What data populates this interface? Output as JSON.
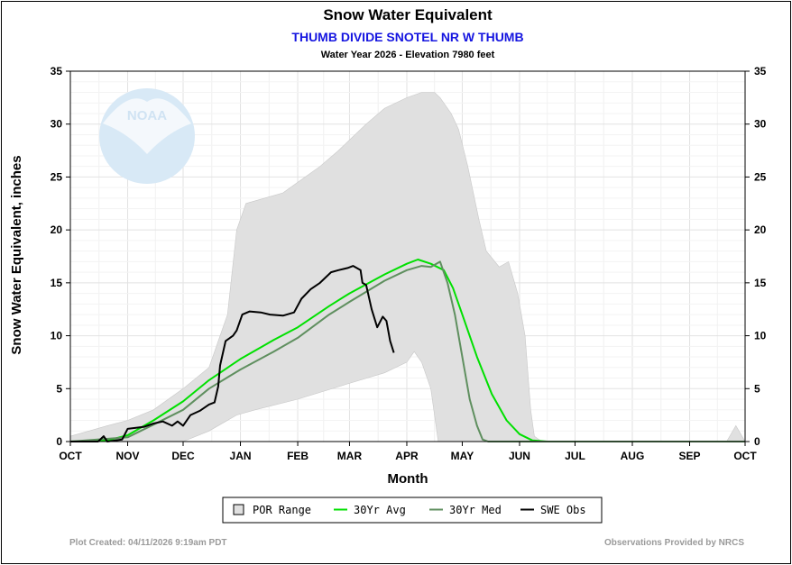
{
  "chart_data": {
    "type": "area",
    "title": "Snow Water Equivalent",
    "subtitle": "THUMB DIVIDE SNOTEL NR W THUMB",
    "meta": "Water Year 2026 -  Elevation 7980 feet",
    "xlabel": "Month",
    "ylabel": "Snow Water Equivalent, inches",
    "ylim": [
      0,
      35
    ],
    "y_ticks": [
      0,
      5,
      10,
      15,
      20,
      25,
      30,
      35
    ],
    "month_labels": [
      "OCT",
      "NOV",
      "DEC",
      "JAN",
      "FEB",
      "MAR",
      "APR",
      "MAY",
      "JUN",
      "JUL",
      "AUG",
      "SEP",
      "OCT"
    ],
    "month_day_offsets": [
      0,
      31,
      61,
      92,
      123,
      151,
      182,
      212,
      243,
      273,
      304,
      335,
      365
    ],
    "series": [
      {
        "name": "POR Range",
        "color": "#e0e0e0",
        "upper": [
          [
            0,
            0.5
          ],
          [
            10,
            1
          ],
          [
            20,
            1.5
          ],
          [
            31,
            2
          ],
          [
            45,
            3
          ],
          [
            61,
            5
          ],
          [
            75,
            7
          ],
          [
            85,
            12
          ],
          [
            90,
            20
          ],
          [
            95,
            22.5
          ],
          [
            105,
            23
          ],
          [
            115,
            23.5
          ],
          [
            123,
            24.5
          ],
          [
            135,
            26
          ],
          [
            145,
            27.5
          ],
          [
            151,
            28.5
          ],
          [
            160,
            30
          ],
          [
            170,
            31.5
          ],
          [
            182,
            32.5
          ],
          [
            190,
            33
          ],
          [
            197,
            33
          ],
          [
            200,
            32.5
          ],
          [
            206,
            31
          ],
          [
            210,
            29.5
          ],
          [
            215,
            26
          ],
          [
            221,
            21
          ],
          [
            225,
            18
          ],
          [
            232,
            16.5
          ],
          [
            237,
            17
          ],
          [
            242,
            14
          ],
          [
            246,
            10
          ],
          [
            249,
            3
          ],
          [
            251,
            0.5
          ],
          [
            255,
            0
          ],
          [
            355,
            0
          ],
          [
            360,
            1.5
          ],
          [
            365,
            0
          ]
        ],
        "lower": [
          [
            0,
            0
          ],
          [
            61,
            0
          ],
          [
            75,
            1
          ],
          [
            90,
            2.5
          ],
          [
            100,
            3
          ],
          [
            123,
            4
          ],
          [
            151,
            5.5
          ],
          [
            170,
            6.5
          ],
          [
            182,
            7.5
          ],
          [
            186,
            8.5
          ],
          [
            190,
            7.5
          ],
          [
            195,
            5
          ],
          [
            199,
            0
          ],
          [
            365,
            0
          ]
        ]
      },
      {
        "name": "30Yr Avg",
        "color": "#00e000",
        "points": [
          [
            0,
            0
          ],
          [
            20,
            0.1
          ],
          [
            31,
            0.6
          ],
          [
            45,
            2
          ],
          [
            61,
            3.8
          ],
          [
            75,
            5.8
          ],
          [
            92,
            7.8
          ],
          [
            110,
            9.6
          ],
          [
            123,
            10.8
          ],
          [
            140,
            12.8
          ],
          [
            151,
            14
          ],
          [
            170,
            15.8
          ],
          [
            182,
            16.8
          ],
          [
            188,
            17.2
          ],
          [
            195,
            16.8
          ],
          [
            202,
            16.2
          ],
          [
            207,
            14.5
          ],
          [
            212,
            12
          ],
          [
            220,
            8
          ],
          [
            228,
            4.5
          ],
          [
            236,
            2
          ],
          [
            243,
            0.7
          ],
          [
            250,
            0.1
          ],
          [
            258,
            0
          ],
          [
            365,
            0
          ]
        ]
      },
      {
        "name": "30Yr Med",
        "color": "#5f8f5f",
        "points": [
          [
            0,
            0
          ],
          [
            31,
            0.4
          ],
          [
            45,
            1.6
          ],
          [
            61,
            3
          ],
          [
            75,
            5
          ],
          [
            92,
            6.8
          ],
          [
            110,
            8.5
          ],
          [
            123,
            9.8
          ],
          [
            140,
            12
          ],
          [
            151,
            13.2
          ],
          [
            170,
            15.2
          ],
          [
            182,
            16.2
          ],
          [
            190,
            16.6
          ],
          [
            195,
            16.5
          ],
          [
            200,
            17
          ],
          [
            204,
            15
          ],
          [
            208,
            12
          ],
          [
            212,
            8
          ],
          [
            216,
            4
          ],
          [
            220,
            1.5
          ],
          [
            223,
            0.2
          ],
          [
            226,
            0
          ],
          [
            365,
            0
          ]
        ]
      },
      {
        "name": "SWE Obs",
        "color": "#000000",
        "points": [
          [
            0,
            0
          ],
          [
            15,
            0
          ],
          [
            18,
            0.5
          ],
          [
            20,
            0
          ],
          [
            28,
            0.2
          ],
          [
            31,
            1.2
          ],
          [
            40,
            1.4
          ],
          [
            45,
            1.7
          ],
          [
            50,
            1.9
          ],
          [
            55,
            1.5
          ],
          [
            58,
            1.9
          ],
          [
            61,
            1.5
          ],
          [
            65,
            2.5
          ],
          [
            70,
            2.9
          ],
          [
            75,
            3.5
          ],
          [
            78,
            3.7
          ],
          [
            80,
            5.2
          ],
          [
            81,
            7.2
          ],
          [
            84,
            9.5
          ],
          [
            88,
            10
          ],
          [
            90,
            10.5
          ],
          [
            93,
            12
          ],
          [
            97,
            12.3
          ],
          [
            103,
            12.2
          ],
          [
            108,
            12
          ],
          [
            115,
            11.9
          ],
          [
            121,
            12.2
          ],
          [
            125,
            13.5
          ],
          [
            130,
            14.4
          ],
          [
            135,
            15
          ],
          [
            141,
            16
          ],
          [
            145,
            16.2
          ],
          [
            150,
            16.4
          ],
          [
            153,
            16.6
          ],
          [
            157,
            16.2
          ],
          [
            158,
            15
          ],
          [
            160,
            14.8
          ],
          [
            163,
            12.5
          ],
          [
            166,
            10.8
          ],
          [
            169,
            11.8
          ],
          [
            171,
            11.4
          ],
          [
            173,
            9.5
          ],
          [
            175,
            8.4
          ]
        ]
      }
    ],
    "legend_position": "bottom-center"
  },
  "legend": {
    "por": "POR Range",
    "avg": "30Yr Avg",
    "med": "30Yr Med",
    "obs": "SWE Obs"
  },
  "footer": {
    "created": "Plot Created: 04/11/2026 9:19am PDT",
    "provider": "Observations Provided by NRCS"
  },
  "watermark": "NOAA"
}
